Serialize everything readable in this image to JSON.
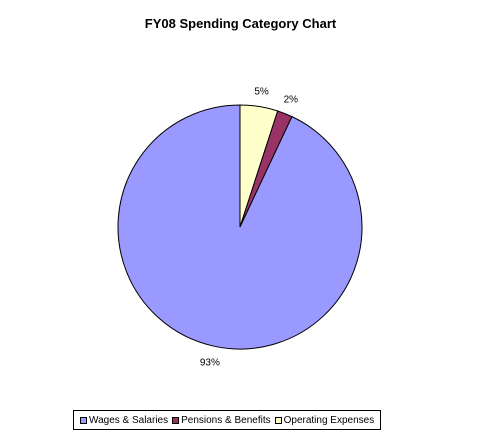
{
  "chart_data": {
    "type": "pie",
    "title": "FY08 Spending Category Chart",
    "legend_position": "bottom",
    "slices": [
      {
        "name": "Wages & Salaries",
        "value": 93,
        "label": "93%",
        "color": "#9999ff"
      },
      {
        "name": "Pensions & Benefits",
        "value": 2,
        "label": "2%",
        "color": "#993366"
      },
      {
        "name": "Operating Expenses",
        "value": 5,
        "label": "5%",
        "color": "#ffffcc"
      }
    ]
  }
}
